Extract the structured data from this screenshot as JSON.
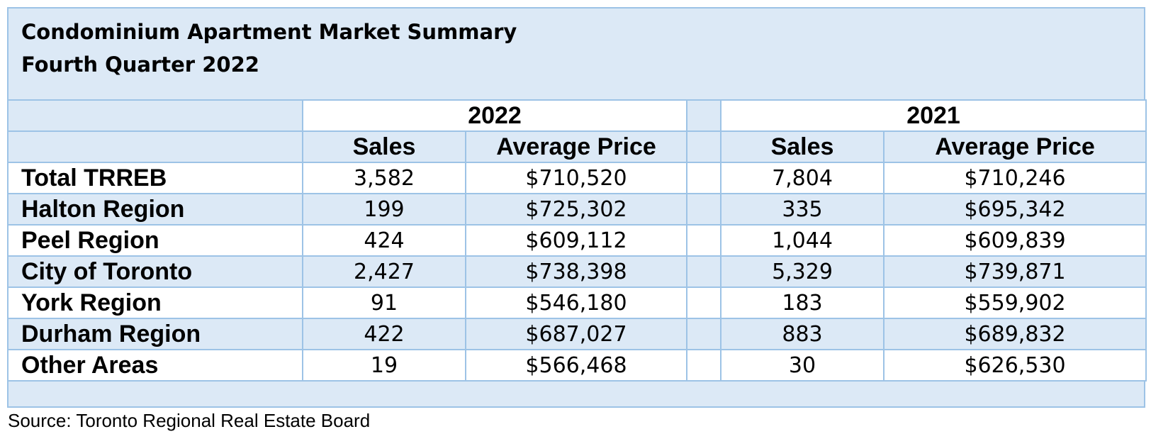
{
  "title": {
    "line1": "Condominium Apartment Market Summary",
    "line2": "Fourth Quarter 2022"
  },
  "chart_data": {
    "type": "table",
    "years": [
      "2022",
      "2021"
    ],
    "columns": [
      "Sales",
      "Average Price"
    ],
    "rows": [
      {
        "region": "Total TRREB",
        "sales_2022": "3,582",
        "price_2022": "$710,520",
        "sales_2021": "7,804",
        "price_2021": "$710,246"
      },
      {
        "region": "Halton Region",
        "sales_2022": "199",
        "price_2022": "$725,302",
        "sales_2021": "335",
        "price_2021": "$695,342"
      },
      {
        "region": "Peel Region",
        "sales_2022": "424",
        "price_2022": "$609,112",
        "sales_2021": "1,044",
        "price_2021": "$609,839"
      },
      {
        "region": "City of Toronto",
        "sales_2022": "2,427",
        "price_2022": "$738,398",
        "sales_2021": "5,329",
        "price_2021": "$739,871"
      },
      {
        "region": "York Region",
        "sales_2022": "91",
        "price_2022": "$546,180",
        "sales_2021": "183",
        "price_2021": "$559,902"
      },
      {
        "region": "Durham Region",
        "sales_2022": "422",
        "price_2022": "$687,027",
        "sales_2021": "883",
        "price_2021": "$689,832"
      },
      {
        "region": "Other Areas",
        "sales_2022": "19",
        "price_2022": "$566,468",
        "sales_2021": "30",
        "price_2021": "$626,530"
      }
    ]
  },
  "source": "Source: Toronto Regional Real Estate Board",
  "colors": {
    "header_fill": "#dce9f6",
    "grid_line": "#9dc3e6",
    "cell_fill": "#ffffff"
  }
}
